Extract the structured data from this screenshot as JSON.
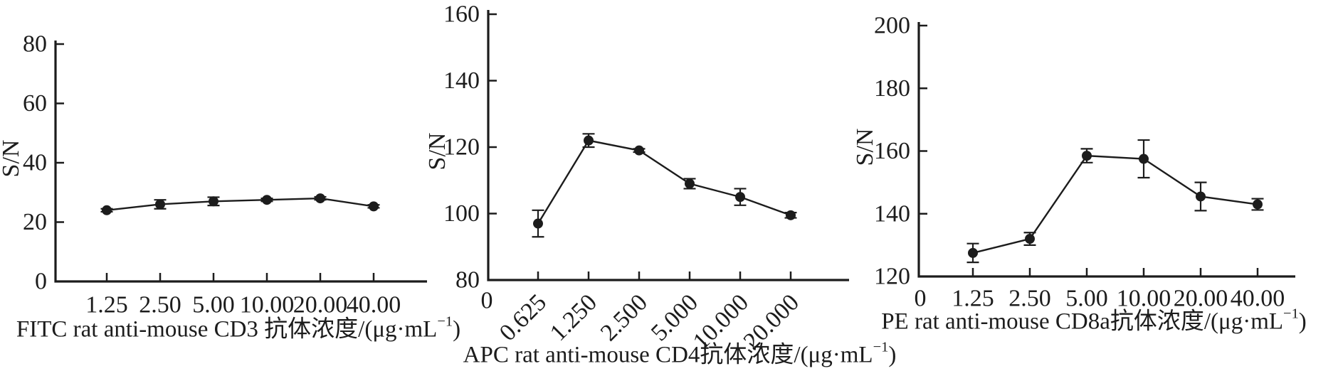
{
  "figure": {
    "background": "#ffffff",
    "ink_color": "#1c1c1c"
  },
  "chart_data": [
    {
      "type": "line",
      "title": "",
      "ylabel": "S/N",
      "xlabel": "FITC rat anti-mouse CD3 抗体浓度/(μg·mL⁻¹)",
      "xlabel_parts": {
        "prefix": "FITC rat anti-mouse CD3 抗体浓度/(μg·mL",
        "sup": "−1",
        "suffix": ")"
      },
      "categories": [
        "1.25",
        "2.50",
        "5.00",
        "10.00",
        "20.00",
        "40.00"
      ],
      "x_tick_rotation": 0,
      "origin_label": "",
      "ylim": [
        0,
        80
      ],
      "yticks": [
        "0",
        "20",
        "40",
        "60",
        "80"
      ],
      "grid": false,
      "legend": "none",
      "marker": "filled-circle",
      "error_bars": true,
      "series": [
        {
          "name": "S/N",
          "values": [
            24,
            26,
            27,
            27.5,
            28,
            25.3
          ],
          "errors": [
            0.5,
            1.5,
            1.4,
            0.5,
            0.5,
            0.5
          ]
        }
      ]
    },
    {
      "type": "line",
      "title": "",
      "ylabel": "S/N",
      "xlabel": "APC rat anti-mouse CD4抗体浓度/(μg·mL⁻¹)",
      "xlabel_parts": {
        "prefix": "APC rat anti-mouse CD4抗体浓度/(μg·mL",
        "sup": "−1",
        "suffix": ")"
      },
      "categories": [
        "0.625",
        "1.250",
        "2.500",
        "5.000",
        "10.000",
        "20.000"
      ],
      "x_tick_rotation": 45,
      "origin_label": "0",
      "ylim": [
        80,
        160
      ],
      "yticks": [
        "80",
        "100",
        "120",
        "140",
        "160"
      ],
      "grid": false,
      "legend": "none",
      "marker": "filled-circle",
      "error_bars": true,
      "series": [
        {
          "name": "S/N",
          "values": [
            97,
            122,
            119,
            109,
            105,
            99.5
          ],
          "errors": [
            4,
            2,
            0.5,
            1.5,
            2.5,
            0.8
          ]
        }
      ]
    },
    {
      "type": "line",
      "title": "",
      "ylabel": "S/N",
      "xlabel": "PE rat anti-mouse CD8a抗体浓度/(μg·mL⁻¹)",
      "xlabel_parts": {
        "prefix": "PE rat anti-mouse CD8a抗体浓度/(μg·mL",
        "sup": "−1",
        "suffix": ")"
      },
      "categories": [
        "1.25",
        "2.50",
        "5.00",
        "10.00",
        "20.00",
        "40.00"
      ],
      "x_tick_rotation": 0,
      "origin_label": "0",
      "ylim": [
        120,
        200
      ],
      "yticks": [
        "120",
        "140",
        "160",
        "180",
        "200"
      ],
      "grid": false,
      "legend": "none",
      "marker": "filled-circle",
      "error_bars": true,
      "series": [
        {
          "name": "S/N",
          "values": [
            127.5,
            132,
            158.5,
            157.5,
            145.5,
            143
          ],
          "errors": [
            3,
            2,
            2.2,
            6,
            4.5,
            1.8
          ]
        }
      ]
    }
  ]
}
